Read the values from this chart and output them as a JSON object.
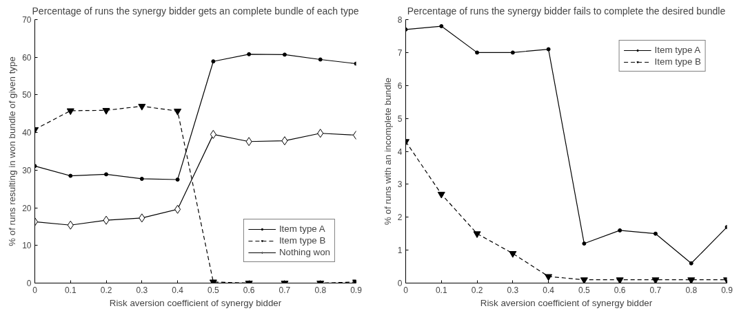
{
  "chart_data": [
    {
      "type": "line",
      "title": "Percentage of runs the synergy bidder gets an complete bundle of each type",
      "xlabel": "Risk aversion coefficient of synergy bidder",
      "ylabel": "% of runs resulting in won bundle of given type",
      "x": [
        0,
        0.1,
        0.2,
        0.3,
        0.4,
        0.5,
        0.6,
        0.7,
        0.8,
        0.9
      ],
      "series": [
        {
          "name": "Item type A",
          "color": "#000000",
          "marker": "circle",
          "line_style": "solid",
          "values": [
            31.1,
            28.5,
            28.9,
            27.7,
            27.5,
            58.9,
            60.8,
            60.7,
            59.4,
            58.3
          ]
        },
        {
          "name": "Item type B",
          "color": "#000000",
          "marker": "triangle",
          "line_style": "dashed",
          "values": [
            40.8,
            45.8,
            45.9,
            47.0,
            45.7,
            0.3,
            0,
            0,
            0,
            0.3
          ]
        },
        {
          "name": "Nothing won",
          "color": "#000000",
          "marker": "diamond",
          "line_style": "solid",
          "values": [
            16.3,
            15.4,
            16.7,
            17.3,
            19.6,
            39.5,
            37.6,
            37.8,
            39.8,
            39.3
          ]
        }
      ],
      "xlim": [
        0,
        0.9
      ],
      "xticks": [
        0,
        0.1,
        0.2,
        0.3,
        0.4,
        0.5,
        0.6,
        0.7,
        0.8,
        0.9
      ],
      "ylim": [
        0,
        70
      ],
      "yticks": [
        0,
        10,
        20,
        30,
        40,
        50,
        60,
        70
      ],
      "grid": false,
      "legend": "bottom right"
    },
    {
      "type": "line",
      "title": "Percentage of runs the synergy bidder fails to complete the desired bundle",
      "xlabel": "Risk aversion coefficient of synergy bidder",
      "ylabel": "% of runs with an incomplete bundle",
      "x": [
        0,
        0.1,
        0.2,
        0.3,
        0.4,
        0.5,
        0.6,
        0.7,
        0.8,
        0.9
      ],
      "series": [
        {
          "name": "Item type A",
          "color": "#000000",
          "marker": "circle",
          "line_style": "solid",
          "values": [
            7.7,
            7.8,
            7.0,
            7.0,
            7.1,
            1.2,
            1.6,
            1.5,
            0.6,
            1.7
          ]
        },
        {
          "name": "Item type B",
          "color": "#000000",
          "marker": "triangle",
          "line_style": "dashed",
          "values": [
            4.3,
            2.7,
            1.5,
            0.9,
            0.2,
            0.1,
            0.1,
            0.1,
            0.1,
            0.1
          ]
        }
      ],
      "xlim": [
        0,
        0.9
      ],
      "xticks": [
        0,
        0.1,
        0.2,
        0.3,
        0.4,
        0.5,
        0.6,
        0.7,
        0.8,
        0.9
      ],
      "ylim": [
        0,
        8
      ],
      "yticks": [
        0,
        1,
        2,
        3,
        4,
        5,
        6,
        7,
        8
      ],
      "grid": false,
      "legend": "top right"
    }
  ]
}
